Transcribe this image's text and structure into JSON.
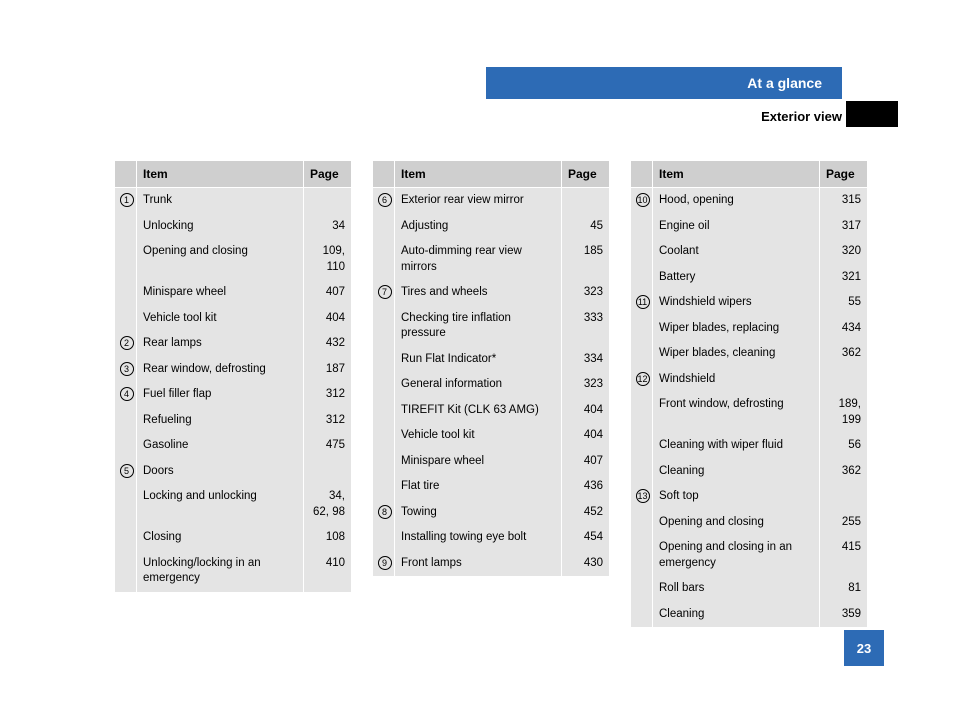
{
  "header": {
    "title": "At a glance",
    "subtitle": "Exterior view"
  },
  "columns": {
    "headers": {
      "item": "Item",
      "page": "Page"
    },
    "col1": [
      {
        "num": "1",
        "item": "Trunk",
        "page": ""
      },
      {
        "num": "",
        "item": "Unlocking",
        "page": "34"
      },
      {
        "num": "",
        "item": "Opening and closing",
        "page": "109, 110"
      },
      {
        "num": "",
        "item": "Minispare wheel",
        "page": "407"
      },
      {
        "num": "",
        "item": "Vehicle tool kit",
        "page": "404"
      },
      {
        "num": "2",
        "item": "Rear lamps",
        "page": "432"
      },
      {
        "num": "3",
        "item": "Rear window, defrosting",
        "page": "187"
      },
      {
        "num": "4",
        "item": "Fuel filler flap",
        "page": "312"
      },
      {
        "num": "",
        "item": "Refueling",
        "page": "312"
      },
      {
        "num": "",
        "item": "Gasoline",
        "page": "475"
      },
      {
        "num": "5",
        "item": "Doors",
        "page": ""
      },
      {
        "num": "",
        "item": "Locking and unlocking",
        "page": "34, 62, 98"
      },
      {
        "num": "",
        "item": "Closing",
        "page": "108"
      },
      {
        "num": "",
        "item": "Unlocking/locking in an emergency",
        "page": "410"
      }
    ],
    "col2": [
      {
        "num": "6",
        "item": "Exterior rear view mirror",
        "page": ""
      },
      {
        "num": "",
        "item": "Adjusting",
        "page": "45"
      },
      {
        "num": "",
        "item": "Auto-dimming rear view mirrors",
        "page": "185"
      },
      {
        "num": "7",
        "item": "Tires and wheels",
        "page": "323"
      },
      {
        "num": "",
        "item": "Checking tire inflation pressure",
        "page": "333"
      },
      {
        "num": "",
        "item": "Run Flat Indicator*",
        "page": "334"
      },
      {
        "num": "",
        "item": "General information",
        "page": "323"
      },
      {
        "num": "",
        "item": "TIREFIT Kit (CLK 63 AMG)",
        "page": "404"
      },
      {
        "num": "",
        "item": "Vehicle tool kit",
        "page": "404"
      },
      {
        "num": "",
        "item": "Minispare wheel",
        "page": "407"
      },
      {
        "num": "",
        "item": "Flat tire",
        "page": "436"
      },
      {
        "num": "8",
        "item": "Towing",
        "page": "452"
      },
      {
        "num": "",
        "item": "Installing towing eye bolt",
        "page": "454"
      },
      {
        "num": "9",
        "item": "Front lamps",
        "page": "430"
      }
    ],
    "col3": [
      {
        "num": "10",
        "item": "Hood, opening",
        "page": "315"
      },
      {
        "num": "",
        "item": "Engine oil",
        "page": "317"
      },
      {
        "num": "",
        "item": "Coolant",
        "page": "320"
      },
      {
        "num": "",
        "item": "Battery",
        "page": "321"
      },
      {
        "num": "11",
        "item": "Windshield wipers",
        "page": "55"
      },
      {
        "num": "",
        "item": "Wiper blades, replacing",
        "page": "434"
      },
      {
        "num": "",
        "item": "Wiper blades, cleaning",
        "page": "362"
      },
      {
        "num": "12",
        "item": "Windshield",
        "page": ""
      },
      {
        "num": "",
        "item": "Front window, defrosting",
        "page": "189, 199"
      },
      {
        "num": "",
        "item": "Cleaning with wiper fluid",
        "page": "56"
      },
      {
        "num": "",
        "item": "Cleaning",
        "page": "362"
      },
      {
        "num": "13",
        "item": "Soft top",
        "page": ""
      },
      {
        "num": "",
        "item": "Opening and closing",
        "page": "255"
      },
      {
        "num": "",
        "item": "Opening and closing in an emergency",
        "page": "415"
      },
      {
        "num": "",
        "item": "Roll bars",
        "page": "81"
      },
      {
        "num": "",
        "item": "Cleaning",
        "page": "359"
      }
    ]
  },
  "pageNumber": "23"
}
